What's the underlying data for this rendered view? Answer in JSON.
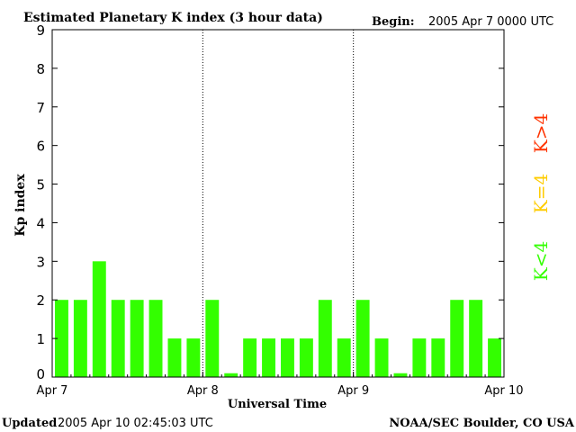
{
  "chart_data": {
    "type": "bar",
    "title": "Estimated Planetary K index (3 hour data)",
    "begin_label": "Begin:",
    "begin_value": "2005 Apr 7 0000 UTC",
    "ylabel": "Kp index",
    "xlabel": "Universal Time",
    "ylim": [
      0,
      9
    ],
    "yticks": [
      "0",
      "1",
      "2",
      "3",
      "4",
      "5",
      "6",
      "7",
      "8",
      "9"
    ],
    "x_tick_labels": [
      "Apr 7",
      "Apr 8",
      "Apr 9",
      "Apr 10"
    ],
    "day_dividers": [
      "Apr 8",
      "Apr 9"
    ],
    "values": [
      2,
      2,
      3,
      2,
      2,
      2,
      1,
      1,
      2,
      0.1,
      1,
      1,
      1,
      1,
      2,
      1,
      2,
      1,
      0.1,
      1,
      1,
      2,
      2,
      1
    ],
    "bar_color": "#33ff00",
    "legend": [
      {
        "text": "K<4",
        "color": "#33ff00"
      },
      {
        "text": "K=4",
        "color": "#ffcc00"
      },
      {
        "text": "K>4",
        "color": "#ff3300"
      }
    ],
    "grid": false
  },
  "footer": {
    "updated_label": "Updated",
    "updated_value": "2005 Apr 10 02:45:03 UTC",
    "source": "NOAA/SEC Boulder, CO USA"
  }
}
